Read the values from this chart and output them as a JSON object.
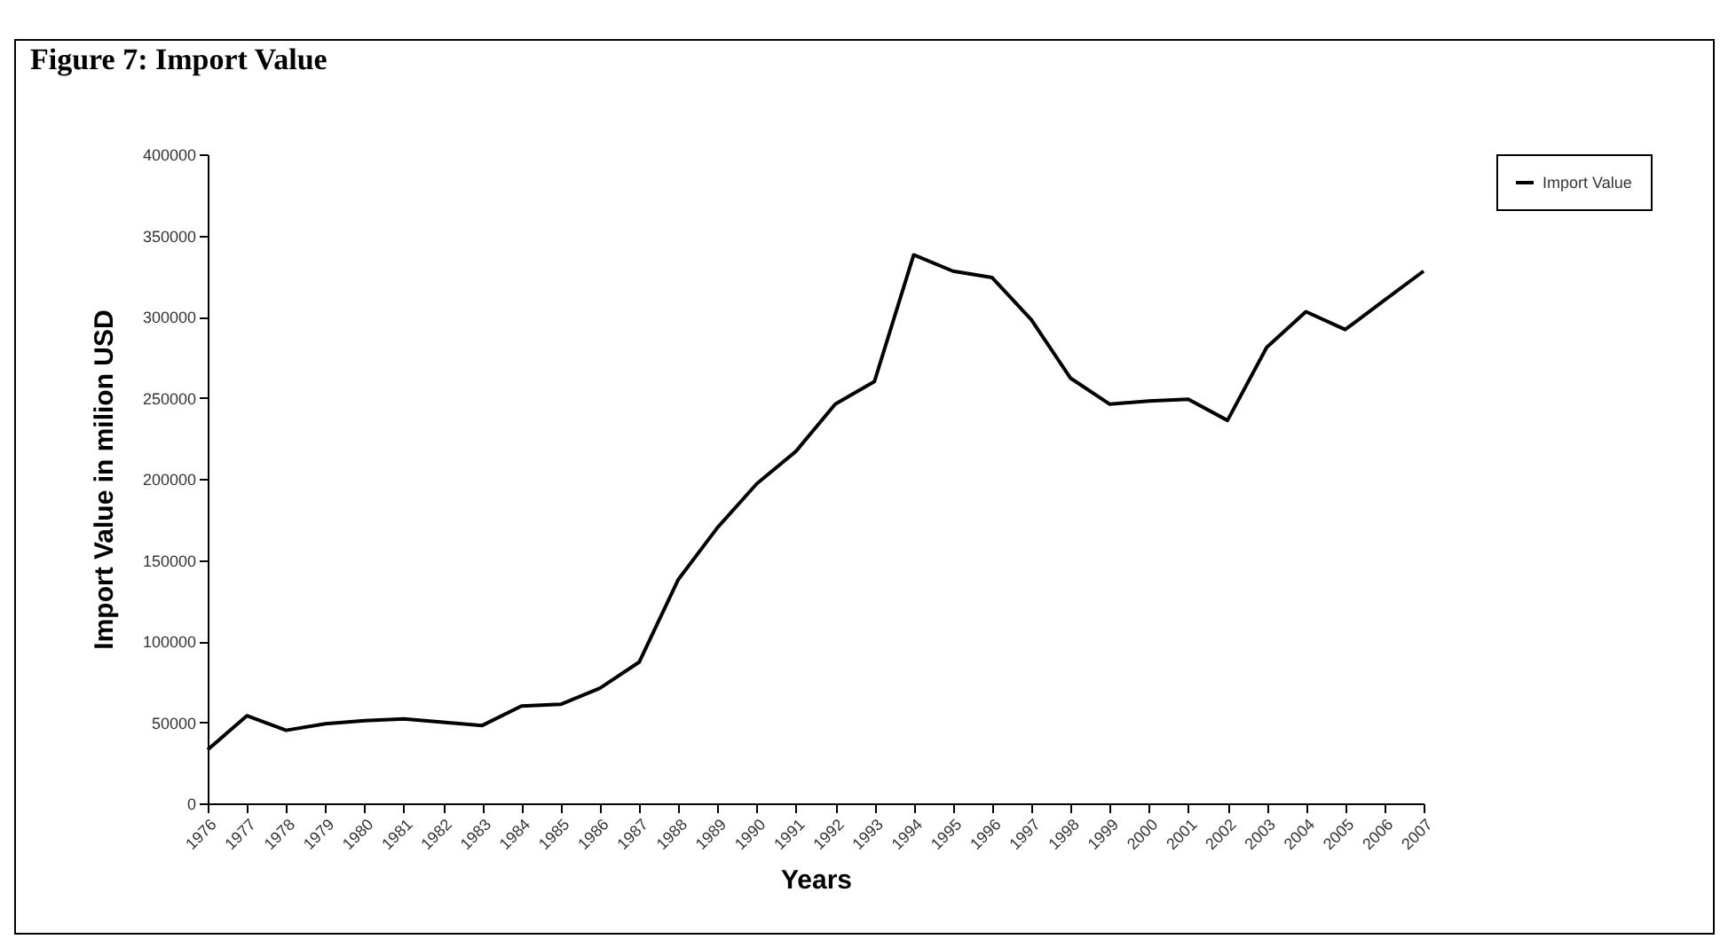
{
  "chart_data": {
    "type": "line",
    "title": "Figure 7: Import Value",
    "xlabel": "Years",
    "ylabel": "Import Value in milion USD",
    "categories": [
      "1976",
      "1977",
      "1978",
      "1979",
      "1980",
      "1981",
      "1982",
      "1983",
      "1984",
      "1985",
      "1986",
      "1987",
      "1988",
      "1989",
      "1990",
      "1991",
      "1992",
      "1993",
      "1994",
      "1995",
      "1996",
      "1997",
      "1998",
      "1999",
      "2000",
      "2001",
      "2002",
      "2003",
      "2004",
      "2005",
      "2006",
      "2007"
    ],
    "series": [
      {
        "name": "Import Value",
        "color": "#000000",
        "values": [
          33000,
          54000,
          45000,
          49000,
          51000,
          52000,
          50000,
          48000,
          60000,
          61000,
          71000,
          87000,
          138000,
          170000,
          197000,
          217000,
          246000,
          260000,
          338000,
          328000,
          324000,
          298000,
          262000,
          246000,
          248000,
          249000,
          236000,
          281000,
          303000,
          292000,
          310000,
          328000
        ]
      }
    ],
    "ylim": [
      0,
      400000
    ],
    "yticks": [
      0,
      50000,
      100000,
      150000,
      200000,
      250000,
      300000,
      350000,
      400000
    ],
    "grid": false,
    "legend": "right",
    "marker": "none",
    "line_style": "solid"
  }
}
